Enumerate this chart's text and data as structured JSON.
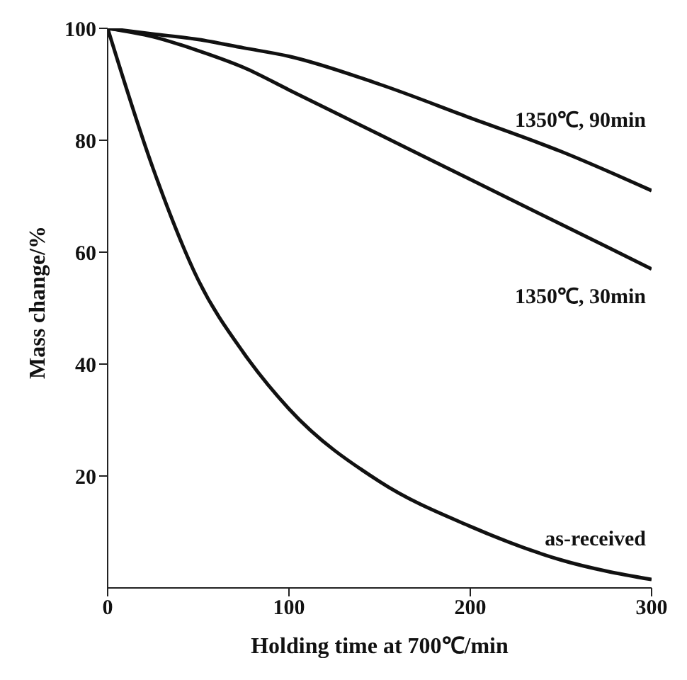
{
  "chart_data": {
    "type": "line",
    "xlabel": "Holding time at 700℃/min",
    "ylabel": "Mass change/%",
    "x": [
      0,
      25,
      50,
      75,
      100,
      150,
      200,
      250,
      300
    ],
    "series": [
      {
        "name": "1350℃, 90min",
        "color": "#111111",
        "values": [
          100,
          99,
          98,
          96.5,
          95,
          90,
          84,
          78,
          71
        ]
      },
      {
        "name": "1350℃, 30min",
        "color": "#111111",
        "values": [
          100,
          98.5,
          96,
          93,
          89,
          81,
          73,
          65,
          57
        ]
      },
      {
        "name": "as-received",
        "color": "#111111",
        "values": [
          100,
          75,
          55,
          42,
          32,
          19,
          11,
          5,
          1.5
        ]
      }
    ],
    "xlim": [
      0,
      300
    ],
    "xticks": [
      0,
      100,
      200,
      300
    ],
    "ylim": [
      0,
      100
    ],
    "yticks": [
      20,
      40,
      60,
      80,
      100
    ],
    "grid": false,
    "legend": false,
    "marker": "none",
    "line_style": "solid"
  }
}
